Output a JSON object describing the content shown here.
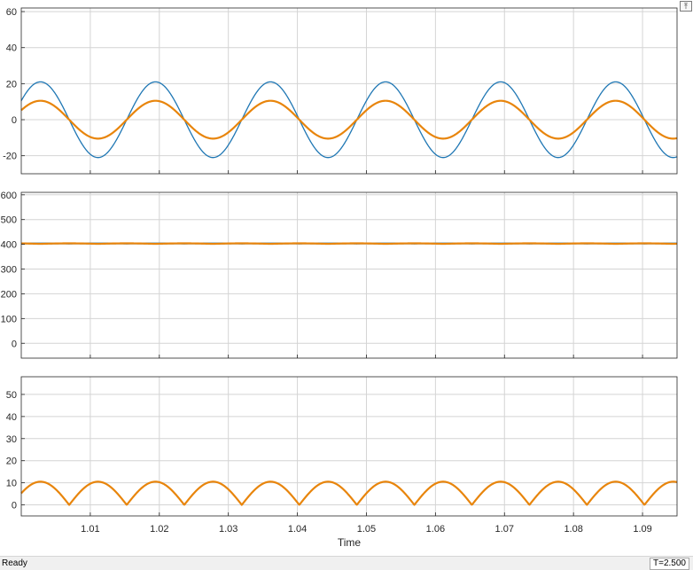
{
  "toolbar": {
    "undock_icon": "undock-arrow-icon"
  },
  "status": {
    "left_text": "Ready",
    "right_text": "T=2.500"
  },
  "chart_data": [
    {
      "type": "line",
      "xlim": [
        1.0,
        1.095
      ],
      "ylim": [
        -30,
        62
      ],
      "yticks": [
        -20,
        0,
        20,
        40,
        60
      ],
      "grid": true,
      "series": [
        {
          "color": "#1f77b4",
          "function": "sin",
          "amplitude": 21,
          "offset": 0,
          "frequency_hz": 60,
          "phase_deg": 30
        },
        {
          "color": "#e8850c",
          "function": "sin",
          "amplitude": 10.5,
          "offset": 0,
          "frequency_hz": 60,
          "phase_deg": 30
        }
      ]
    },
    {
      "type": "line",
      "xlim": [
        1.0,
        1.095
      ],
      "ylim": [
        -60,
        610
      ],
      "yticks": [
        0,
        100,
        200,
        300,
        400,
        500,
        600
      ],
      "grid": true,
      "series": [
        {
          "color": "#1f77b4",
          "function": "dc_ripple",
          "offset": 402,
          "amplitude": 3,
          "frequency_hz": 60,
          "phase_deg": 30
        },
        {
          "color": "#e8850c",
          "function": "dc_ripple",
          "offset": 402,
          "amplitude": 2,
          "frequency_hz": 60,
          "phase_deg": 120
        }
      ]
    },
    {
      "type": "line",
      "xlim": [
        1.0,
        1.095
      ],
      "ylim": [
        -5,
        58
      ],
      "yticks": [
        0,
        10,
        20,
        30,
        40,
        50
      ],
      "grid": true,
      "xticks": [
        1.01,
        1.02,
        1.03,
        1.04,
        1.05,
        1.06,
        1.07,
        1.08,
        1.09
      ],
      "xlabel": "Time",
      "series": [
        {
          "color": "#1f77b4",
          "function": "abs_sin",
          "amplitude": 10.5,
          "offset": 0,
          "frequency_hz": 60,
          "phase_deg": 30
        },
        {
          "color": "#e8850c",
          "function": "abs_sin",
          "amplitude": 10.5,
          "offset": 0,
          "frequency_hz": 60,
          "phase_deg": 30
        }
      ]
    }
  ]
}
